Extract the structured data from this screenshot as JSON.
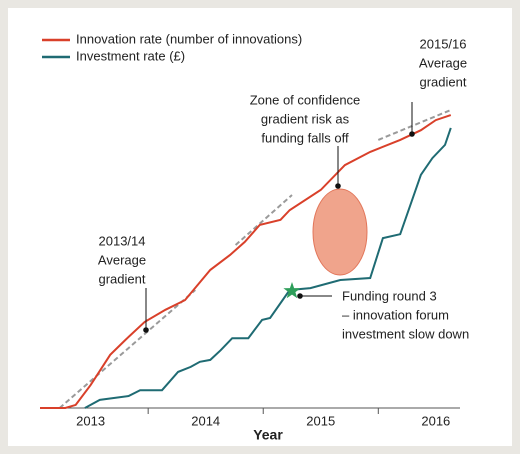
{
  "chart_data": {
    "type": "line",
    "x_label": "Year",
    "xlim": [
      2013.06,
      2016.71
    ],
    "ylim": [
      0,
      100
    ],
    "xticks": [
      {
        "value": 2013.5,
        "label": "2013"
      },
      {
        "value": 2014.5,
        "label": "2014"
      },
      {
        "value": 2015.5,
        "label": "2015"
      },
      {
        "value": 2016.5,
        "label": "2016"
      }
    ],
    "legend": "top-left",
    "series": [
      {
        "name": "Innovation rate (number of innovations)",
        "color": "#d9402a",
        "x": [
          2013.06,
          2013.28,
          2013.37,
          2013.5,
          2013.67,
          2013.8,
          2013.97,
          2014.15,
          2014.32,
          2014.54,
          2014.71,
          2014.84,
          2014.97,
          2015.15,
          2015.23,
          2015.5,
          2015.71,
          2015.93,
          2016.19,
          2016.37,
          2016.5,
          2016.63
        ],
        "values": [
          0,
          0,
          0.8,
          5.9,
          13.7,
          17.5,
          22.2,
          25.3,
          27.8,
          35.6,
          39.4,
          42.8,
          47.2,
          48.5,
          51.0,
          56.2,
          62.6,
          66.0,
          69.1,
          71.6,
          74.2,
          75.5
        ]
      },
      {
        "name": "Investment rate (£)",
        "color": "#1f6b73",
        "x": [
          2013.45,
          2013.58,
          2013.71,
          2013.83,
          2013.93,
          2014.12,
          2014.26,
          2014.37,
          2014.45,
          2014.54,
          2014.63,
          2014.73,
          2014.87,
          2014.99,
          2015.06,
          2015.23,
          2015.41,
          2015.67,
          2015.93,
          2016.04,
          2016.19,
          2016.37,
          2016.47,
          2016.58,
          2016.63
        ],
        "values": [
          0,
          2.1,
          2.6,
          3.1,
          4.6,
          4.6,
          9.3,
          10.6,
          11.9,
          12.4,
          14.9,
          18.0,
          18.0,
          22.7,
          23.2,
          30.4,
          30.9,
          33.0,
          33.5,
          43.8,
          44.8,
          60.1,
          64.4,
          67.8,
          72.2
        ]
      }
    ],
    "trend_lines": [
      {
        "color": "#9a9a9a",
        "x": [
          2013.23,
          2014.41
        ],
        "values": [
          0,
          30.4
        ]
      },
      {
        "color": "#9a9a9a",
        "x": [
          2014.76,
          2015.25
        ],
        "values": [
          42.0,
          54.9
        ]
      },
      {
        "color": "#9a9a9a",
        "x": [
          2016.0,
          2016.63
        ],
        "values": [
          69.1,
          76.8
        ]
      }
    ],
    "annotations": [
      {
        "lines": [
          "2013/14",
          "Average",
          "gradient"
        ]
      },
      {
        "lines": [
          "Zone of confidence",
          "gradient risk as",
          "funding falls off"
        ]
      },
      {
        "lines": [
          "2015/16",
          "Average",
          "gradient"
        ]
      },
      {
        "lines": [
          "Funding round 3",
          "– innovation forum",
          "investment slow down"
        ]
      }
    ]
  }
}
